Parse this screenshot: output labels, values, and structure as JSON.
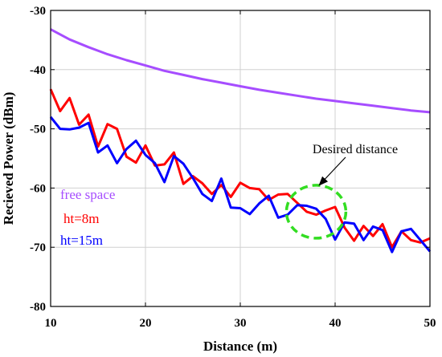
{
  "chart_data": {
    "type": "line",
    "title": "",
    "xlabel": "Distance (m)",
    "ylabel": "Recieved Power (dBm)",
    "xlim": [
      10,
      50
    ],
    "ylim": [
      -80,
      -30
    ],
    "xticks": [
      10,
      20,
      30,
      40,
      50
    ],
    "yticks": [
      -30,
      -40,
      -50,
      -60,
      -70,
      -80
    ],
    "grid": true,
    "series": [
      {
        "name": "free space",
        "color": "#a64dff",
        "x": [
          10,
          12,
          14,
          16,
          18,
          20,
          22,
          24,
          26,
          28,
          30,
          32,
          34,
          36,
          38,
          40,
          42,
          44,
          46,
          48,
          50
        ],
        "values": [
          -33.2,
          -34.9,
          -36.2,
          -37.4,
          -38.4,
          -39.3,
          -40.2,
          -40.9,
          -41.6,
          -42.2,
          -42.8,
          -43.4,
          -43.9,
          -44.4,
          -44.9,
          -45.3,
          -45.7,
          -46.1,
          -46.5,
          -46.9,
          -47.2
        ]
      },
      {
        "name": "ht=8m",
        "color": "#ff0000",
        "x": [
          10,
          11,
          12,
          13,
          14,
          15,
          16,
          17,
          18,
          19,
          20,
          21,
          22,
          23,
          24,
          25,
          26,
          27,
          28,
          29,
          30,
          31,
          32,
          33,
          34,
          35,
          36,
          37,
          38,
          39,
          40,
          41,
          42,
          43,
          44,
          45,
          46,
          47,
          48,
          49,
          50
        ],
        "values": [
          -43.3,
          -47.0,
          -44.8,
          -49.3,
          -47.6,
          -53.0,
          -49.2,
          -50.0,
          -54.7,
          -55.7,
          -52.8,
          -56.2,
          -56.0,
          -54.0,
          -59.3,
          -58.0,
          -59.2,
          -61.0,
          -59.5,
          -61.5,
          -59.1,
          -60.0,
          -60.2,
          -62.0,
          -61.1,
          -61.0,
          -62.5,
          -64.0,
          -64.5,
          -63.8,
          -63.2,
          -66.7,
          -68.9,
          -66.4,
          -68.1,
          -66.1,
          -70.0,
          -67.3,
          -68.8,
          -69.2,
          -68.5
        ]
      },
      {
        "name": "ht=15m",
        "color": "#0000ff",
        "x": [
          10,
          11,
          12,
          13,
          14,
          15,
          16,
          17,
          18,
          19,
          20,
          21,
          22,
          23,
          24,
          25,
          26,
          27,
          28,
          29,
          30,
          31,
          32,
          33,
          34,
          35,
          36,
          37,
          38,
          39,
          40,
          41,
          42,
          43,
          44,
          45,
          46,
          47,
          48,
          49,
          50
        ],
        "values": [
          -48.0,
          -50.0,
          -50.1,
          -49.8,
          -49.0,
          -54.0,
          -52.8,
          -55.8,
          -53.4,
          -52.0,
          -54.4,
          -55.8,
          -59.0,
          -54.6,
          -55.9,
          -58.3,
          -61.0,
          -62.2,
          -58.4,
          -63.3,
          -63.4,
          -64.4,
          -62.6,
          -61.3,
          -65.0,
          -64.5,
          -62.9,
          -63.0,
          -63.5,
          -65.2,
          -68.7,
          -65.8,
          -66.0,
          -68.8,
          -66.5,
          -67.1,
          -70.8,
          -67.3,
          -66.9,
          -68.8,
          -70.7
        ]
      }
    ],
    "legend": {
      "placement": "lower-left",
      "entries": [
        {
          "label": "free space",
          "color": "#a64dff"
        },
        {
          "label": "ht=8m",
          "color": "#ff0000"
        },
        {
          "label": "ht=15m",
          "color": "#0000ff"
        }
      ]
    },
    "annotations": [
      {
        "text": "Desired distance",
        "x": 38,
        "y": -64
      }
    ]
  }
}
